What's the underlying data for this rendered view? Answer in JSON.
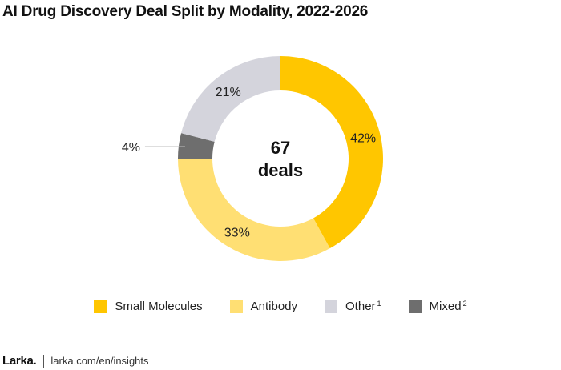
{
  "chart_data": {
    "type": "pie",
    "title": "AI Drug Discovery Deal Split by Modality, 2022-2026",
    "center_label": {
      "value": "67",
      "unit": "deals"
    },
    "slices": [
      {
        "name": "Small Molecules",
        "value": 42,
        "label": "42%",
        "color": "#ffc600"
      },
      {
        "name": "Antibody",
        "value": 33,
        "label": "33%",
        "color": "#ffdf73"
      },
      {
        "name": "Mixed",
        "value": 4,
        "label": "4%",
        "color": "#6e6e6e"
      },
      {
        "name": "Other",
        "value": 21,
        "label": "21%",
        "color": "#d4d4dc"
      }
    ]
  },
  "legend": [
    {
      "label": "Small Molecules",
      "note": "",
      "color": "#ffc600"
    },
    {
      "label": "Antibody",
      "note": "",
      "color": "#ffdf73"
    },
    {
      "label": "Other",
      "note": "1",
      "color": "#d4d4dc"
    },
    {
      "label": "Mixed",
      "note": "2",
      "color": "#6e6e6e"
    }
  ],
  "footer": {
    "brand": "Larka.",
    "url": "larka.com/en/insights"
  }
}
